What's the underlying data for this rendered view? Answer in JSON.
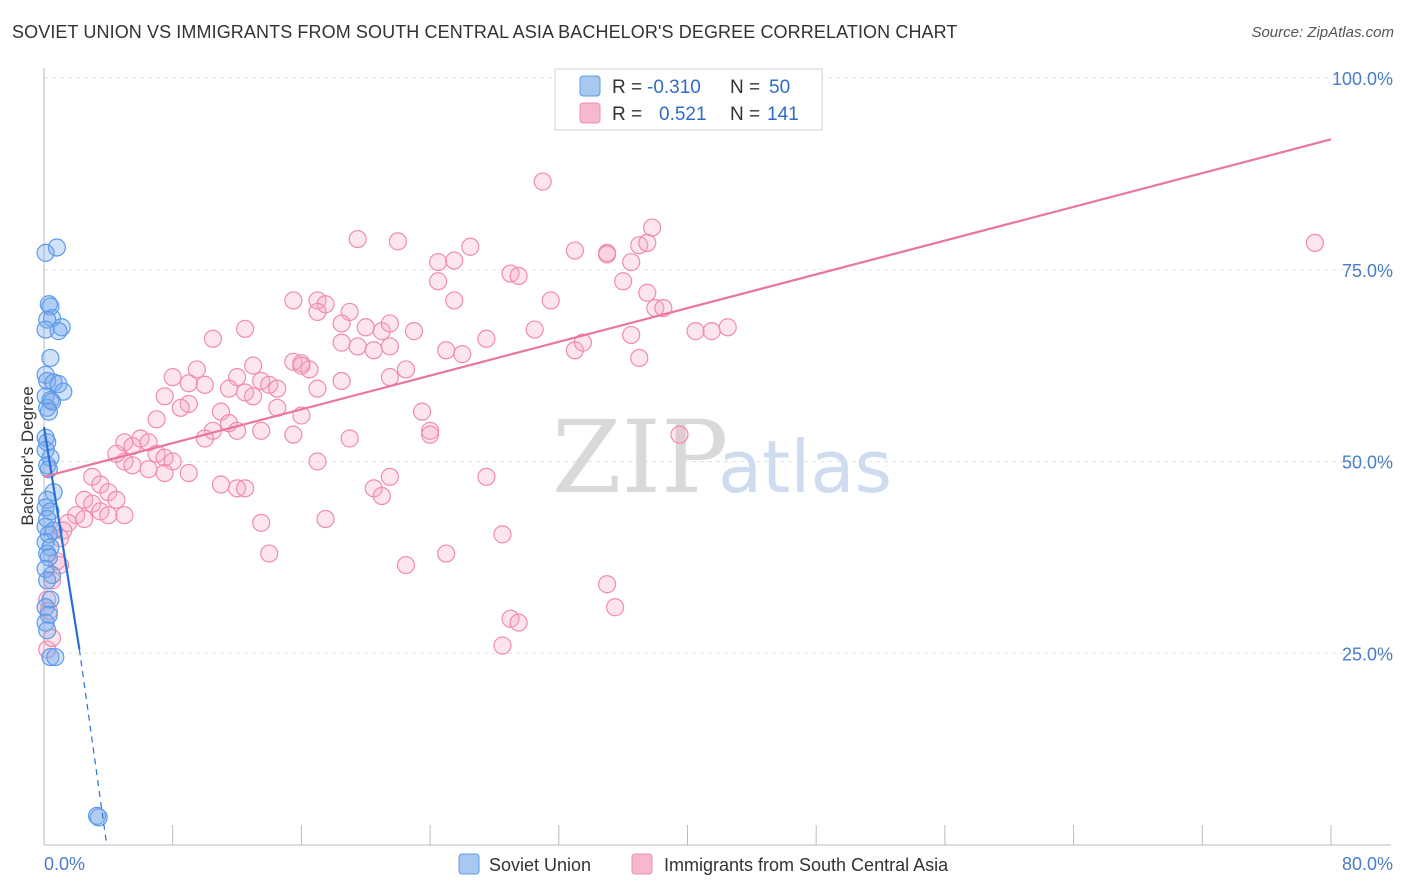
{
  "header": {
    "title": "SOVIET UNION VS IMMIGRANTS FROM SOUTH CENTRAL ASIA BACHELOR'S DEGREE CORRELATION CHART",
    "source": "Source: ZipAtlas.com"
  },
  "watermark": {
    "zip": "ZIP",
    "atlas": "atlas"
  },
  "legend": {
    "rows": [
      {
        "r_label": "R =",
        "r_value": "-0.310",
        "n_label": "N =",
        "n_value": "50",
        "color": "#a8c8f0"
      },
      {
        "r_label": "R =",
        "r_value": "0.521",
        "n_label": "N =",
        "n_value": "141",
        "color": "#f5b8cc"
      }
    ]
  },
  "bottom_legend": [
    {
      "label": "Soviet Union",
      "color": "#a8c8f0"
    },
    {
      "label": "Immigrants from South Central Asia",
      "color": "#f5b8cc"
    }
  ],
  "chart_data": {
    "type": "scatter",
    "title": "SOVIET UNION VS IMMIGRANTS FROM SOUTH CENTRAL ASIA BACHELOR'S DEGREE CORRELATION CHART",
    "xlabel": "",
    "ylabel": "Bachelor's Degree",
    "xlim": [
      0,
      80
    ],
    "ylim": [
      0,
      100
    ],
    "x_tick_labels": [
      "0.0%",
      "80.0%"
    ],
    "y_ticks": [
      25,
      50,
      75,
      100
    ],
    "y_tick_labels": [
      "25.0%",
      "50.0%",
      "75.0%",
      "100.0%"
    ],
    "grid": true,
    "legend_position": "top-center",
    "series": [
      {
        "name": "Soviet Union",
        "color": "#5b9bea",
        "points": [
          [
            0.8,
            77.9
          ],
          [
            0.1,
            77.2
          ],
          [
            0.3,
            70.5
          ],
          [
            0.4,
            70.2
          ],
          [
            0.5,
            68.7
          ],
          [
            0.2,
            68.5
          ],
          [
            1.1,
            67.5
          ],
          [
            0.9,
            67.0
          ],
          [
            0.1,
            67.2
          ],
          [
            0.4,
            63.5
          ],
          [
            0.1,
            61.3
          ],
          [
            0.2,
            60.5
          ],
          [
            0.6,
            60.3
          ],
          [
            0.9,
            60.1
          ],
          [
            1.2,
            59.1
          ],
          [
            0.1,
            58.5
          ],
          [
            0.4,
            58.0
          ],
          [
            0.2,
            57.0
          ],
          [
            0.5,
            57.8
          ],
          [
            0.3,
            56.5
          ],
          [
            0.1,
            53.1
          ],
          [
            0.2,
            52.5
          ],
          [
            0.1,
            51.5
          ],
          [
            0.4,
            50.5
          ],
          [
            0.2,
            49.5
          ],
          [
            0.3,
            49.0
          ],
          [
            0.6,
            46.0
          ],
          [
            0.2,
            45.0
          ],
          [
            0.1,
            44.0
          ],
          [
            0.4,
            43.5
          ],
          [
            0.2,
            42.5
          ],
          [
            0.1,
            41.5
          ],
          [
            0.6,
            41.0
          ],
          [
            0.3,
            40.5
          ],
          [
            0.1,
            39.5
          ],
          [
            0.4,
            38.8
          ],
          [
            0.2,
            38.0
          ],
          [
            0.3,
            37.5
          ],
          [
            0.1,
            36.0
          ],
          [
            0.5,
            35.2
          ],
          [
            0.2,
            34.5
          ],
          [
            0.4,
            32.0
          ],
          [
            0.1,
            31.0
          ],
          [
            0.3,
            30.0
          ],
          [
            0.1,
            29.0
          ],
          [
            0.2,
            28.0
          ],
          [
            0.4,
            24.5
          ],
          [
            0.7,
            24.5
          ],
          [
            3.3,
            3.8
          ],
          [
            3.4,
            3.6
          ]
        ]
      },
      {
        "name": "Immigrants from South Central Asia",
        "color": "#f08cac",
        "points": [
          [
            31.0,
            86.5
          ],
          [
            19.5,
            79.0
          ],
          [
            22.0,
            78.7
          ],
          [
            26.5,
            78.0
          ],
          [
            33.0,
            77.5
          ],
          [
            35.0,
            77.2
          ],
          [
            37.0,
            78.2
          ],
          [
            37.5,
            78.5
          ],
          [
            37.8,
            80.5
          ],
          [
            24.5,
            76.0
          ],
          [
            25.5,
            76.2
          ],
          [
            35.0,
            77.0
          ],
          [
            36.5,
            76.0
          ],
          [
            29.0,
            74.5
          ],
          [
            29.5,
            74.2
          ],
          [
            24.5,
            73.5
          ],
          [
            36.0,
            73.5
          ],
          [
            15.5,
            71.0
          ],
          [
            17.0,
            71.0
          ],
          [
            17.5,
            70.5
          ],
          [
            25.5,
            71.0
          ],
          [
            31.5,
            71.0
          ],
          [
            37.5,
            72.0
          ],
          [
            38.0,
            70.0
          ],
          [
            17.0,
            69.5
          ],
          [
            19.0,
            69.5
          ],
          [
            18.5,
            68.0
          ],
          [
            20.0,
            67.5
          ],
          [
            21.0,
            67.0
          ],
          [
            21.5,
            68.0
          ],
          [
            12.5,
            67.3
          ],
          [
            23.0,
            67.0
          ],
          [
            27.5,
            66.0
          ],
          [
            40.5,
            67.0
          ],
          [
            42.5,
            67.5
          ],
          [
            30.5,
            67.2
          ],
          [
            10.5,
            66.0
          ],
          [
            18.5,
            65.5
          ],
          [
            19.5,
            65.0
          ],
          [
            20.5,
            64.5
          ],
          [
            21.5,
            65.0
          ],
          [
            25.0,
            64.5
          ],
          [
            26.0,
            64.0
          ],
          [
            33.0,
            64.5
          ],
          [
            36.5,
            66.5
          ],
          [
            13.0,
            62.5
          ],
          [
            15.5,
            63.0
          ],
          [
            16.0,
            62.8
          ],
          [
            16.5,
            62.0
          ],
          [
            9.5,
            62.0
          ],
          [
            12.0,
            61.0
          ],
          [
            13.5,
            60.5
          ],
          [
            14.0,
            60.0
          ],
          [
            8.0,
            61.0
          ],
          [
            9.0,
            60.2
          ],
          [
            10.0,
            60.0
          ],
          [
            11.5,
            59.5
          ],
          [
            12.5,
            59.0
          ],
          [
            13.0,
            58.5
          ],
          [
            14.5,
            59.5
          ],
          [
            17.0,
            59.5
          ],
          [
            18.5,
            60.5
          ],
          [
            22.5,
            62.0
          ],
          [
            7.5,
            58.5
          ],
          [
            9.0,
            57.5
          ],
          [
            11.0,
            56.5
          ],
          [
            11.5,
            55.0
          ],
          [
            14.5,
            57.0
          ],
          [
            16.0,
            56.0
          ],
          [
            21.5,
            61.0
          ],
          [
            7.0,
            55.5
          ],
          [
            8.5,
            57.0
          ],
          [
            10.5,
            54.0
          ],
          [
            10.0,
            53.0
          ],
          [
            12.0,
            54.0
          ],
          [
            13.5,
            54.0
          ],
          [
            15.5,
            53.5
          ],
          [
            19.0,
            53.0
          ],
          [
            24.0,
            54.0
          ],
          [
            5.0,
            52.5
          ],
          [
            5.5,
            52.0
          ],
          [
            6.0,
            53.0
          ],
          [
            6.5,
            52.5
          ],
          [
            7.0,
            51.0
          ],
          [
            7.5,
            50.5
          ],
          [
            8.0,
            50.0
          ],
          [
            5.0,
            50.0
          ],
          [
            4.5,
            51.0
          ],
          [
            5.5,
            49.5
          ],
          [
            6.5,
            49.0
          ],
          [
            7.5,
            48.5
          ],
          [
            9.0,
            48.5
          ],
          [
            11.0,
            47.0
          ],
          [
            12.0,
            46.5
          ],
          [
            12.5,
            46.5
          ],
          [
            17.0,
            50.0
          ],
          [
            20.5,
            46.5
          ],
          [
            21.0,
            45.5
          ],
          [
            21.5,
            48.0
          ],
          [
            27.5,
            48.0
          ],
          [
            3.0,
            48.0
          ],
          [
            3.5,
            47.0
          ],
          [
            4.0,
            46.0
          ],
          [
            4.5,
            45.0
          ],
          [
            2.5,
            45.0
          ],
          [
            3.0,
            44.5
          ],
          [
            3.5,
            43.5
          ],
          [
            4.0,
            43.0
          ],
          [
            5.0,
            43.0
          ],
          [
            2.0,
            43.0
          ],
          [
            2.5,
            42.5
          ],
          [
            1.5,
            42.0
          ],
          [
            1.2,
            41.0
          ],
          [
            1.0,
            40.0
          ],
          [
            13.5,
            42.0
          ],
          [
            17.5,
            42.5
          ],
          [
            14.0,
            38.0
          ],
          [
            22.5,
            36.5
          ],
          [
            25.0,
            38.0
          ],
          [
            28.5,
            40.5
          ],
          [
            35.0,
            34.0
          ],
          [
            35.5,
            31.0
          ],
          [
            29.0,
            29.5
          ],
          [
            29.5,
            29.0
          ],
          [
            28.5,
            26.0
          ],
          [
            1.0,
            36.5
          ],
          [
            0.8,
            37.0
          ],
          [
            0.5,
            34.5
          ],
          [
            0.2,
            32.0
          ],
          [
            0.3,
            30.5
          ],
          [
            0.2,
            25.5
          ],
          [
            0.5,
            27.0
          ],
          [
            39.5,
            53.5
          ],
          [
            41.5,
            67.0
          ],
          [
            37.0,
            63.5
          ],
          [
            33.5,
            65.5
          ],
          [
            23.5,
            56.5
          ],
          [
            24.0,
            53.5
          ],
          [
            79.0,
            78.5
          ],
          [
            38.5,
            70.0
          ],
          [
            16.0,
            62.5
          ]
        ]
      }
    ],
    "trendlines": [
      {
        "series": "Soviet Union",
        "x": [
          0,
          2.2
        ],
        "y": [
          54.5,
          25.5
        ],
        "dashed_extension": {
          "x": [
            2.2,
            3.9
          ],
          "y": [
            25.5,
            0
          ]
        }
      },
      {
        "series": "Immigrants from South Central Asia",
        "x": [
          0,
          80
        ],
        "y": [
          48.0,
          92.0
        ]
      }
    ]
  }
}
